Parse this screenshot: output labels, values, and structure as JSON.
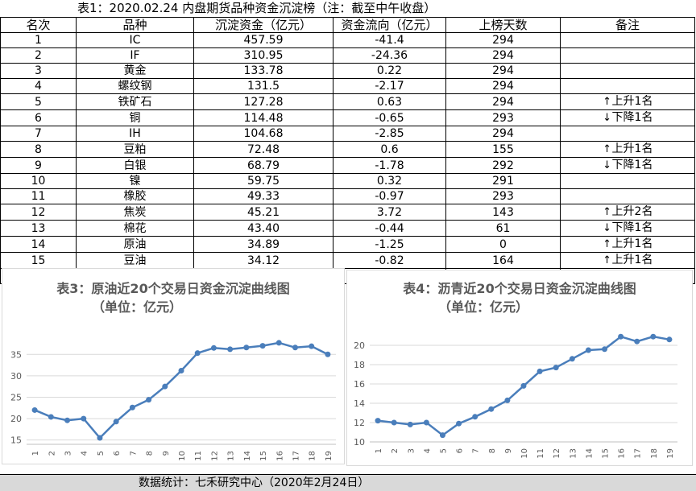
{
  "table": {
    "title": "表1：2020.02.24 内盘期货品种资金沉淀榜（注：截至中午收盘）",
    "headers": [
      "名次",
      "品种",
      "沉淀资金（亿元）",
      "资金流向（亿元）",
      "上榜天数",
      "备注"
    ],
    "rows": [
      {
        "rank": "1",
        "name": "IC",
        "fund": "457.59",
        "flow": "-41.4",
        "days": "294",
        "arrow": "",
        "note": ""
      },
      {
        "rank": "2",
        "name": "IF",
        "fund": "310.95",
        "flow": "-24.36",
        "days": "294",
        "arrow": "",
        "note": ""
      },
      {
        "rank": "3",
        "name": "黄金",
        "fund": "133.78",
        "flow": "0.22",
        "days": "294",
        "arrow": "",
        "note": ""
      },
      {
        "rank": "4",
        "name": "螺纹钢",
        "fund": "131.5",
        "flow": "-2.17",
        "days": "294",
        "arrow": "",
        "note": ""
      },
      {
        "rank": "5",
        "name": "铁矿石",
        "fund": "127.28",
        "flow": "0.63",
        "days": "294",
        "arrow": "↑",
        "note": "上升1名"
      },
      {
        "rank": "6",
        "name": "铜",
        "fund": "114.48",
        "flow": "-0.65",
        "days": "293",
        "arrow": "↓",
        "note": "下降1名"
      },
      {
        "rank": "7",
        "name": "IH",
        "fund": "104.68",
        "flow": "-2.85",
        "days": "294",
        "arrow": "",
        "note": ""
      },
      {
        "rank": "8",
        "name": "豆粕",
        "fund": "72.48",
        "flow": "0.6",
        "days": "155",
        "arrow": "↑",
        "note": "上升1名"
      },
      {
        "rank": "9",
        "name": "白银",
        "fund": "68.79",
        "flow": "-1.78",
        "days": "292",
        "arrow": "↓",
        "note": "下降1名"
      },
      {
        "rank": "10",
        "name": "镍",
        "fund": "59.75",
        "flow": "0.32",
        "days": "291",
        "arrow": "",
        "note": ""
      },
      {
        "rank": "11",
        "name": "橡胶",
        "fund": "49.33",
        "flow": "-0.97",
        "days": "293",
        "arrow": "",
        "note": ""
      },
      {
        "rank": "12",
        "name": "焦炭",
        "fund": "45.21",
        "flow": "3.72",
        "days": "143",
        "arrow": "↑",
        "note": "上升2名"
      },
      {
        "rank": "13",
        "name": "棉花",
        "fund": "43.40",
        "flow": "-0.44",
        "days": "61",
        "arrow": "↓",
        "note": "下降1名"
      },
      {
        "rank": "14",
        "name": "原油",
        "fund": "34.89",
        "flow": "-1.25",
        "days": "0",
        "arrow": "↑",
        "note": "上升1名"
      },
      {
        "rank": "15",
        "name": "豆油",
        "fund": "34.12",
        "flow": "-0.82",
        "days": "164",
        "arrow": "↑",
        "note": "上升1名"
      }
    ]
  },
  "chart_data": [
    {
      "type": "line",
      "title": "表3：原油近20个交易日资金沉淀曲线图",
      "subtitle": "（单位：亿元）",
      "x": [
        "1",
        "2",
        "3",
        "4",
        "5",
        "6",
        "7",
        "8",
        "9",
        "10",
        "11",
        "12",
        "13",
        "14",
        "15",
        "16",
        "17",
        "18",
        "19"
      ],
      "series": [
        {
          "values": [
            22.0,
            20.4,
            19.6,
            20.0,
            15.5,
            19.3,
            22.6,
            24.4,
            27.5,
            31.2,
            35.3,
            36.5,
            36.2,
            36.6,
            37.0,
            37.7,
            36.6,
            36.9,
            35.0
          ]
        }
      ],
      "yticks": [
        15,
        20,
        25,
        30,
        35
      ],
      "ylim": [
        14,
        39
      ],
      "grid": true,
      "line_color": "#4a7ebb"
    },
    {
      "type": "line",
      "title": "表4：沥青近20个交易日资金沉淀曲线图",
      "subtitle": "（单位：亿元）",
      "x": [
        "1",
        "2",
        "3",
        "4",
        "5",
        "6",
        "7",
        "8",
        "9",
        "10",
        "11",
        "12",
        "13",
        "14",
        "15",
        "16",
        "17",
        "18",
        "19"
      ],
      "series": [
        {
          "values": [
            12.2,
            12.0,
            11.8,
            12.0,
            10.7,
            11.9,
            12.6,
            13.4,
            14.3,
            15.8,
            17.3,
            17.7,
            18.6,
            19.5,
            19.6,
            20.9,
            20.4,
            20.9,
            20.6
          ]
        }
      ],
      "yticks": [
        10,
        12,
        14,
        16,
        18,
        20
      ],
      "ylim": [
        10,
        21.5
      ],
      "grid": true,
      "line_color": "#4a7ebb"
    }
  ],
  "footer": {
    "text": "数据统计：七禾研究中心（2020年2月24日）"
  }
}
